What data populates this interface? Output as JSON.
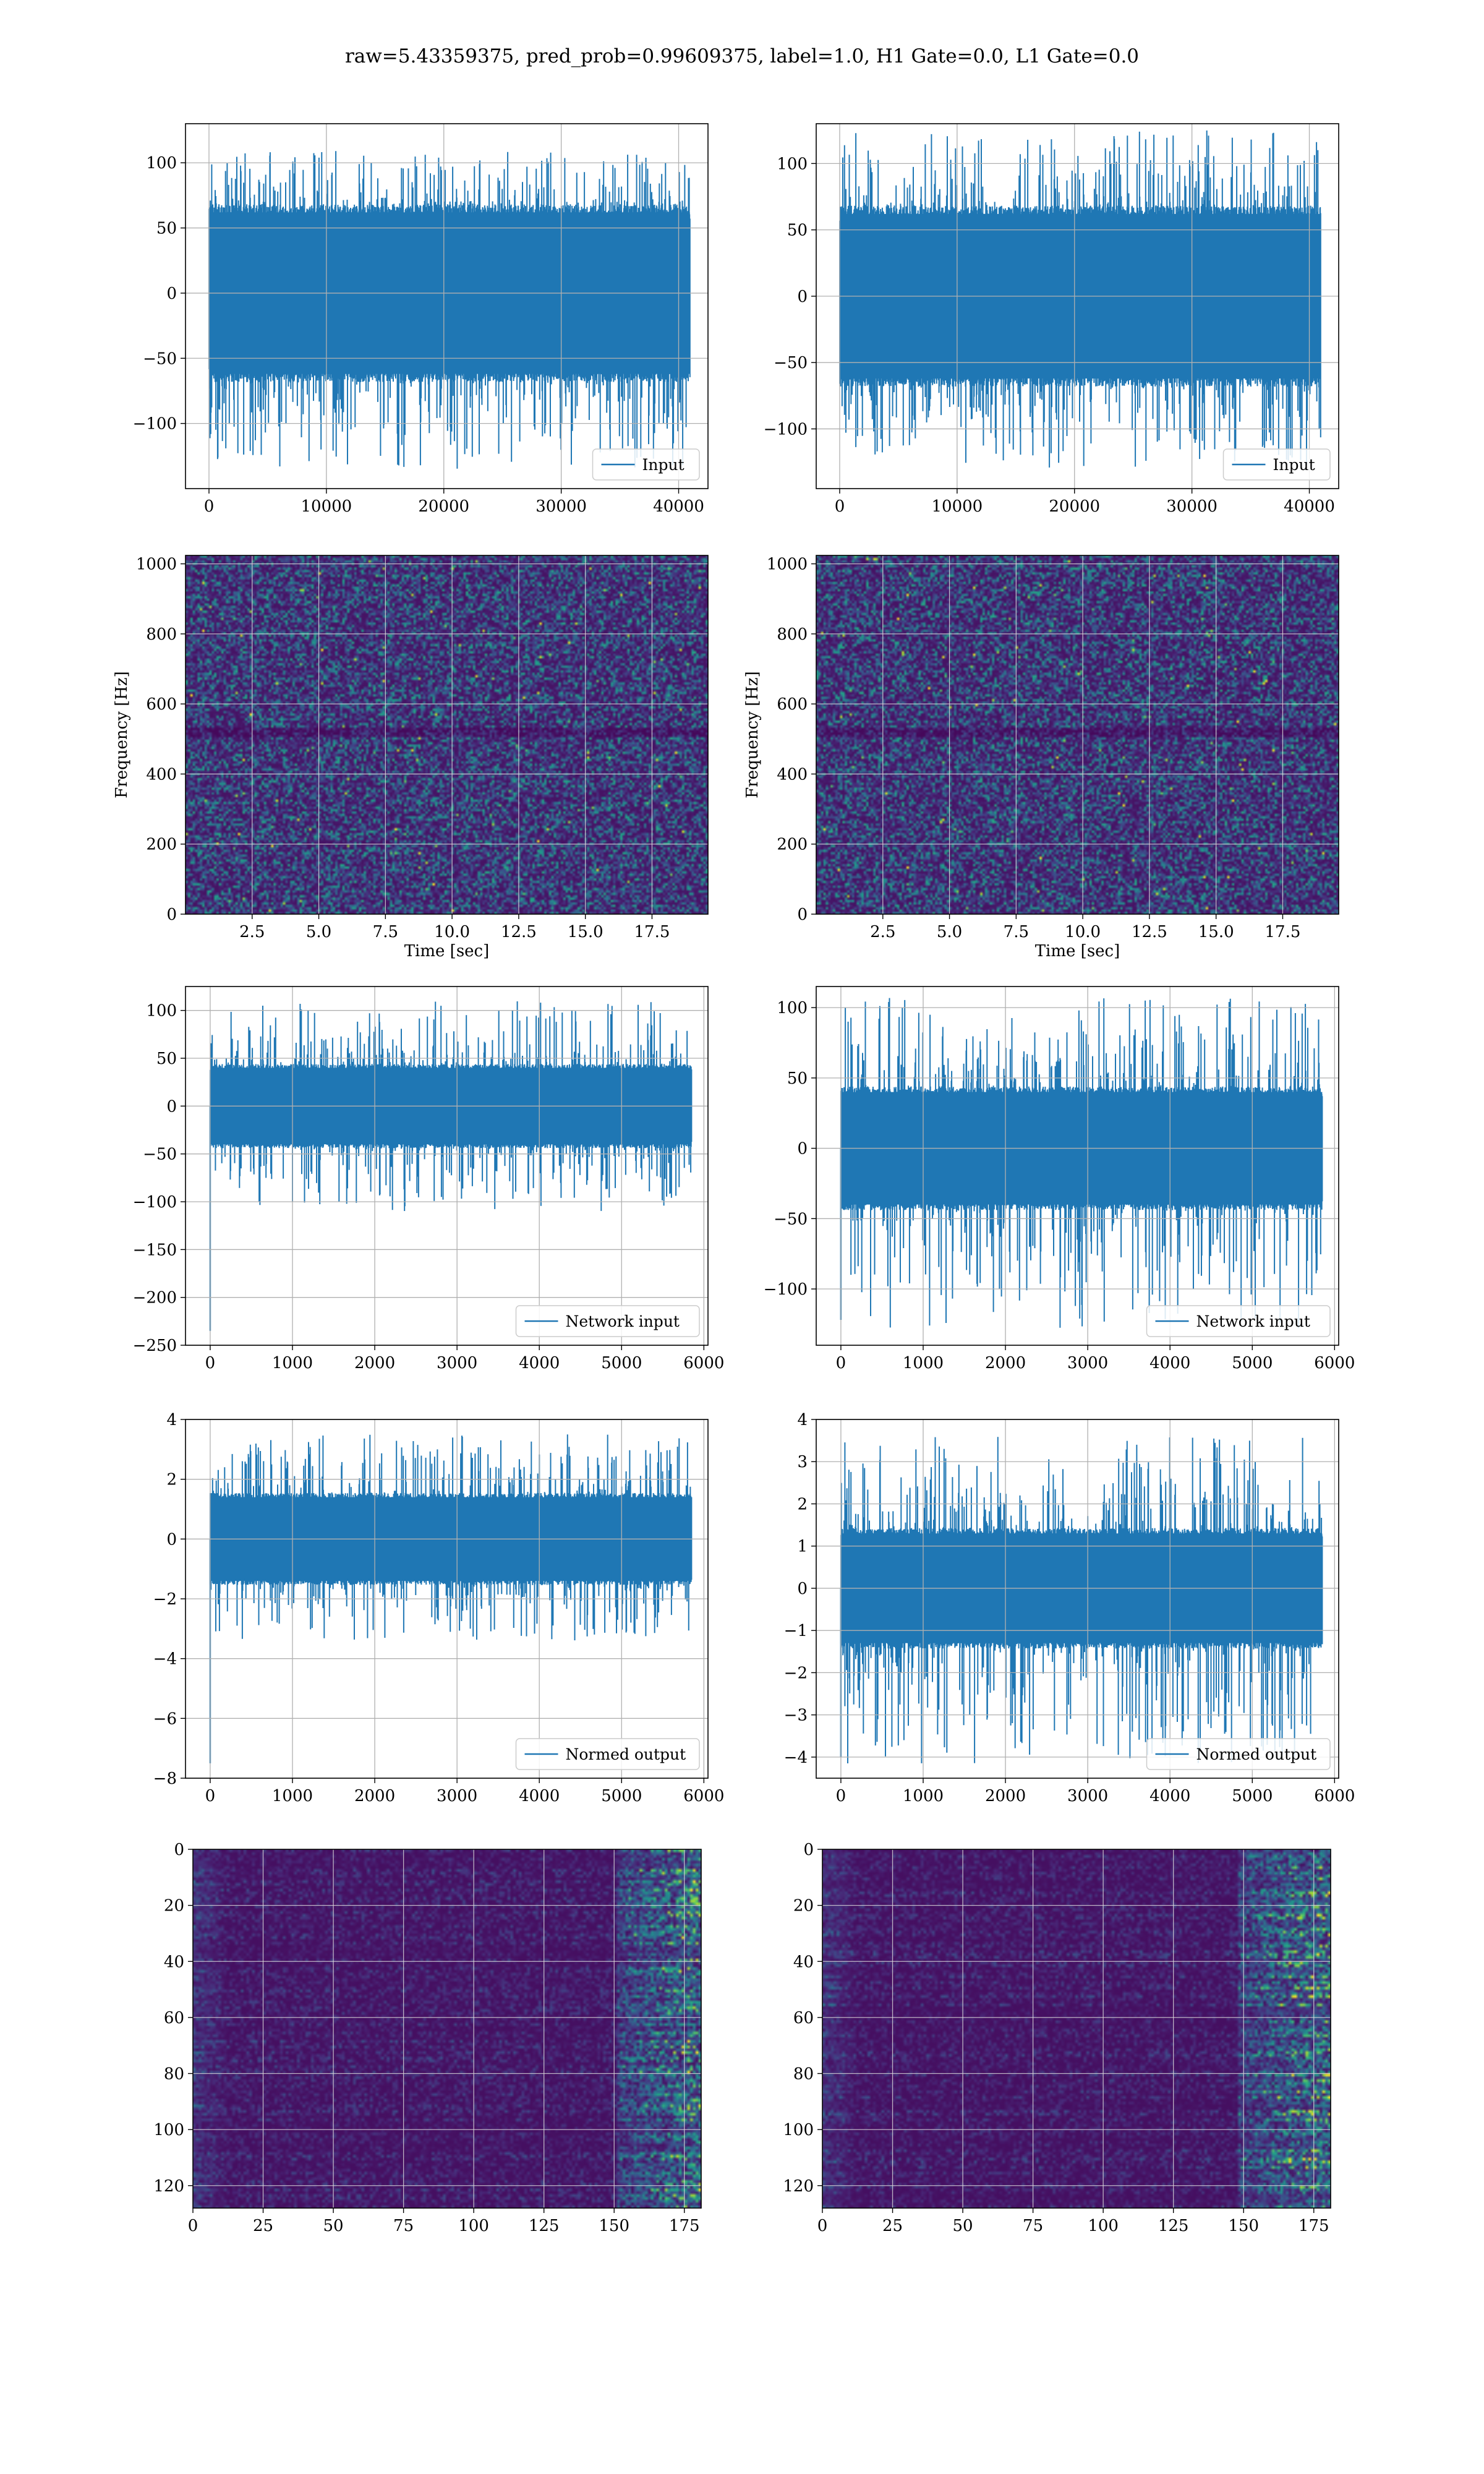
{
  "figure": {
    "title": "raw=5.43359375, pred_prob=0.99609375, label=1.0, H1 Gate=0.0, L1 Gate=0.0"
  },
  "colors": {
    "series": "#1f77b4",
    "grid": "#b0b0b0",
    "viridis_dark": "#440154"
  },
  "chart_data": [
    {
      "id": "r1c1",
      "type": "line",
      "legend": [
        "Input"
      ],
      "legend_loc": "lower-right",
      "xlim": [
        -2000,
        42500
      ],
      "ylim": [
        -150,
        130
      ],
      "xticks": [
        0,
        10000,
        20000,
        30000,
        40000
      ],
      "yticks": [
        -100,
        -50,
        0,
        50,
        100
      ],
      "x_range": [
        0,
        40960
      ],
      "n_points": 1400,
      "envelope": {
        "core": 62,
        "peak_max": 110,
        "peak_min": -135
      },
      "grid": true
    },
    {
      "id": "r1c2",
      "type": "line",
      "legend": [
        "Input"
      ],
      "legend_loc": "lower-right",
      "xlim": [
        -2000,
        42500
      ],
      "ylim": [
        -145,
        130
      ],
      "xticks": [
        0,
        10000,
        20000,
        30000,
        40000
      ],
      "yticks": [
        -100,
        -50,
        0,
        50,
        100
      ],
      "x_range": [
        0,
        40960
      ],
      "n_points": 1400,
      "envelope": {
        "core": 62,
        "peak_max": 125,
        "peak_min": -130
      },
      "grid": true
    },
    {
      "id": "r2c1",
      "type": "heatmap",
      "xlabel": "Time [sec]",
      "ylabel": "Frequency [Hz]",
      "xlim": [
        0,
        19.6
      ],
      "ylim": [
        0,
        1024
      ],
      "xticks": [
        2.5,
        5.0,
        7.5,
        10.0,
        12.5,
        15.0,
        17.5
      ],
      "xticklabels": [
        "2.5",
        "5.0",
        "7.5",
        "10.0",
        "12.5",
        "15.0",
        "17.5"
      ],
      "yticks": [
        0,
        200,
        400,
        600,
        800,
        1000
      ],
      "colormap": "viridis",
      "pattern": "noise-spectrogram",
      "grid": true
    },
    {
      "id": "r2c2",
      "type": "heatmap",
      "xlabel": "Time [sec]",
      "ylabel": "Frequency [Hz]",
      "xlim": [
        0,
        19.6
      ],
      "ylim": [
        0,
        1024
      ],
      "xticks": [
        2.5,
        5.0,
        7.5,
        10.0,
        12.5,
        15.0,
        17.5
      ],
      "xticklabels": [
        "2.5",
        "5.0",
        "7.5",
        "10.0",
        "12.5",
        "15.0",
        "17.5"
      ],
      "yticks": [
        0,
        200,
        400,
        600,
        800,
        1000
      ],
      "colormap": "viridis",
      "pattern": "noise-spectrogram",
      "grid": true
    },
    {
      "id": "r3c1",
      "type": "line",
      "legend": [
        "Network input"
      ],
      "legend_loc": "lower-right",
      "xlim": [
        -300,
        6050
      ],
      "ylim": [
        -250,
        125
      ],
      "xticks": [
        0,
        1000,
        2000,
        3000,
        4000,
        5000,
        6000
      ],
      "yticks": [
        -250,
        -200,
        -150,
        -100,
        -50,
        0,
        50,
        100
      ],
      "x_range": [
        0,
        5850
      ],
      "n_points": 1200,
      "envelope": {
        "core": 40,
        "peak_max": 110,
        "peak_min": -110
      },
      "spike": {
        "x": 0,
        "y": -235
      },
      "grid": true
    },
    {
      "id": "r3c2",
      "type": "line",
      "legend": [
        "Network input"
      ],
      "legend_loc": "lower-right",
      "xlim": [
        -300,
        6050
      ],
      "ylim": [
        -140,
        115
      ],
      "xticks": [
        0,
        1000,
        2000,
        3000,
        4000,
        5000,
        6000
      ],
      "yticks": [
        -100,
        -50,
        0,
        50,
        100
      ],
      "x_range": [
        0,
        5850
      ],
      "n_points": 1200,
      "envelope": {
        "core": 40,
        "peak_max": 108,
        "peak_min": -128
      },
      "spike": {
        "x": 0,
        "y": -122
      },
      "grid": true
    },
    {
      "id": "r4c1",
      "type": "line",
      "legend": [
        "Normed output"
      ],
      "legend_loc": "lower-right",
      "xlim": [
        -300,
        6050
      ],
      "ylim": [
        -8,
        4
      ],
      "xticks": [
        0,
        1000,
        2000,
        3000,
        4000,
        5000,
        6000
      ],
      "yticks": [
        -8,
        -6,
        -4,
        -2,
        0,
        2,
        4
      ],
      "x_range": [
        0,
        5850
      ],
      "n_points": 1200,
      "envelope": {
        "core": 1.4,
        "peak_max": 3.5,
        "peak_min": -3.4
      },
      "spike": {
        "x": 0,
        "y": -7.5
      },
      "grid": true
    },
    {
      "id": "r4c2",
      "type": "line",
      "legend": [
        "Normed output"
      ],
      "legend_loc": "lower-right",
      "xlim": [
        -300,
        6050
      ],
      "ylim": [
        -4.5,
        4
      ],
      "xticks": [
        0,
        1000,
        2000,
        3000,
        4000,
        5000,
        6000
      ],
      "yticks": [
        -4,
        -3,
        -2,
        -1,
        0,
        1,
        2,
        3,
        4
      ],
      "x_range": [
        0,
        5850
      ],
      "n_points": 1200,
      "envelope": {
        "core": 1.3,
        "peak_max": 3.6,
        "peak_min": -4.2
      },
      "spike": {
        "x": 0,
        "y": -4.0
      },
      "grid": true
    },
    {
      "id": "r5c1",
      "type": "heatmap",
      "xlim": [
        0,
        181
      ],
      "ylim": [
        128,
        0
      ],
      "xticks": [
        0,
        25,
        50,
        75,
        100,
        125,
        150,
        175
      ],
      "yticks": [
        0,
        20,
        40,
        60,
        80,
        100,
        120
      ],
      "colormap": "viridis",
      "pattern": "feature-map",
      "onset": 150,
      "grid": true
    },
    {
      "id": "r5c2",
      "type": "heatmap",
      "xlim": [
        0,
        181
      ],
      "ylim": [
        128,
        0
      ],
      "xticks": [
        0,
        25,
        50,
        75,
        100,
        125,
        150,
        175
      ],
      "yticks": [
        0,
        20,
        40,
        60,
        80,
        100,
        120
      ],
      "colormap": "viridis",
      "pattern": "feature-map",
      "onset": 147,
      "grid": true
    }
  ]
}
